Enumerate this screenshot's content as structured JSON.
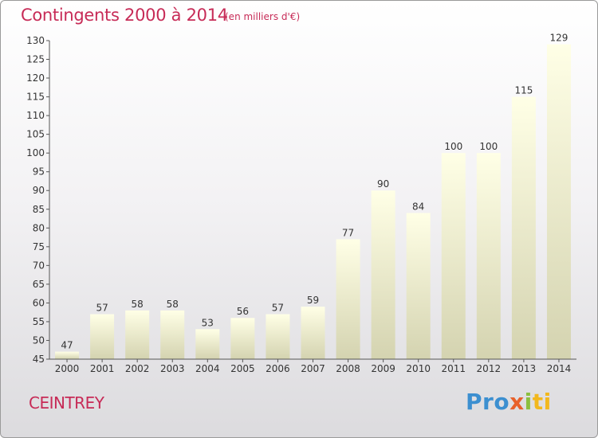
{
  "header": {
    "title": "Contingents 2000 à 2014",
    "subtitle": "(en milliers d'€)"
  },
  "footer": {
    "commune": "CEINTREY",
    "logo": [
      "Pro",
      "x",
      "i",
      "ti"
    ]
  },
  "colors": {
    "accent": "#c72b57",
    "bar_top": "#ffffe6",
    "bar_bottom": "#d4d3b0"
  },
  "chart_data": {
    "type": "bar",
    "categories": [
      "2000",
      "2001",
      "2002",
      "2003",
      "2004",
      "2005",
      "2006",
      "2007",
      "2008",
      "2009",
      "2010",
      "2011",
      "2012",
      "2013",
      "2014"
    ],
    "values": [
      47,
      57,
      58,
      58,
      53,
      56,
      57,
      59,
      77,
      90,
      84,
      100,
      100,
      115,
      129
    ],
    "title": "Contingents 2000 à 2014",
    "subtitle": "(en milliers d'€)",
    "xlabel": "",
    "ylabel": "",
    "ylim": [
      45,
      130
    ],
    "ytick_step": 5,
    "grid": false,
    "show_value_labels": true
  }
}
